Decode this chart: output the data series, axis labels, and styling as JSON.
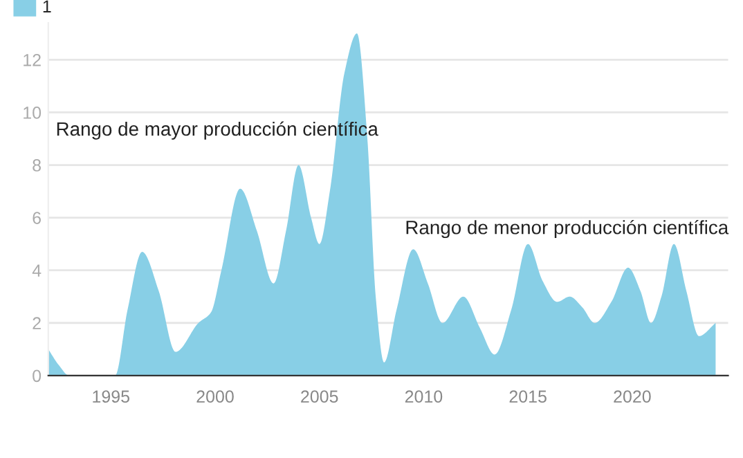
{
  "chart_data": {
    "type": "area",
    "x": [
      1992,
      1992.5,
      1993,
      1994,
      1995.2,
      1995.8,
      1996.5,
      1997.3,
      1998.1,
      1999.2,
      1999.8,
      2000.3,
      2001.2,
      2002,
      2002.8,
      2003.4,
      2004,
      2004.6,
      2005,
      2005.5,
      2006.2,
      2006.8,
      2007.3,
      2007.7,
      2008.1,
      2008.7,
      2009.5,
      2010.2,
      2010.9,
      2011.9,
      2012.7,
      2013.4,
      2014.2,
      2015,
      2015.7,
      2016.4,
      2017,
      2017.6,
      2018.2,
      2019,
      2019.8,
      2020.4,
      2020.9,
      2021.4,
      2022,
      2022.6,
      2023.2,
      2024
    ],
    "series": [
      {
        "name": "1",
        "color": "#88cfe6",
        "values": [
          1,
          0.4,
          0,
          0,
          0,
          2.5,
          4.7,
          3.2,
          0.9,
          2.0,
          2.4,
          4.0,
          7.1,
          5.5,
          3.5,
          5.5,
          8,
          6.0,
          5,
          7.0,
          11.5,
          13,
          9.0,
          3.0,
          0.5,
          2.5,
          4.8,
          3.5,
          2.0,
          3.0,
          1.8,
          0.8,
          2.5,
          5,
          3.6,
          2.8,
          3.0,
          2.6,
          2.0,
          2.8,
          4.1,
          3.2,
          2.0,
          3.0,
          5,
          3.2,
          1.5,
          2.0
        ]
      }
    ],
    "xlim": [
      1992,
      2024.6
    ],
    "ylim": [
      0,
      13.4
    ],
    "xticks": [
      1995,
      2000,
      2005,
      2010,
      2015,
      2020
    ],
    "yticks": [
      0,
      2,
      4,
      6,
      8,
      10,
      12
    ],
    "grid": "y",
    "legend": "top left",
    "annotations": [
      "Rango de mayor producción científica",
      "Rango de menor producción científica"
    ]
  }
}
